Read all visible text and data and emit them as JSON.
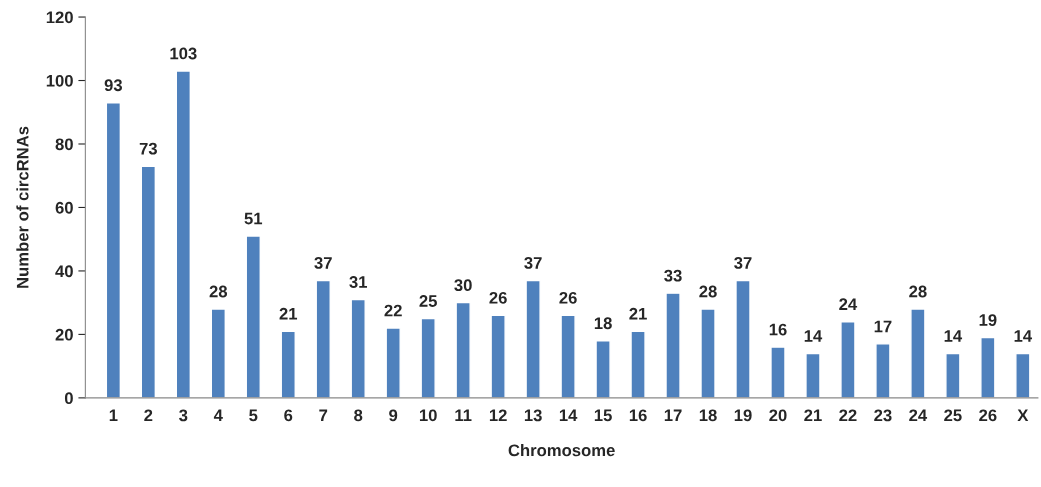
{
  "chart_data": {
    "type": "bar",
    "xlabel": "Chromosome",
    "ylabel": "Number of circRNAs",
    "categories": [
      "1",
      "2",
      "3",
      "4",
      "5",
      "6",
      "7",
      "8",
      "9",
      "10",
      "11",
      "12",
      "13",
      "14",
      "15",
      "16",
      "17",
      "18",
      "19",
      "20",
      "21",
      "22",
      "23",
      "24",
      "25",
      "26",
      "X"
    ],
    "values": [
      93,
      73,
      103,
      28,
      51,
      21,
      37,
      31,
      22,
      25,
      30,
      26,
      37,
      26,
      18,
      21,
      33,
      28,
      37,
      16,
      14,
      24,
      17,
      28,
      14,
      19,
      14
    ],
    "color": "#4f81bd",
    "ylim": [
      0,
      120
    ],
    "yticks": [
      0,
      20,
      40,
      60,
      80,
      100,
      120
    ],
    "grid": false,
    "data_labels": true
  }
}
